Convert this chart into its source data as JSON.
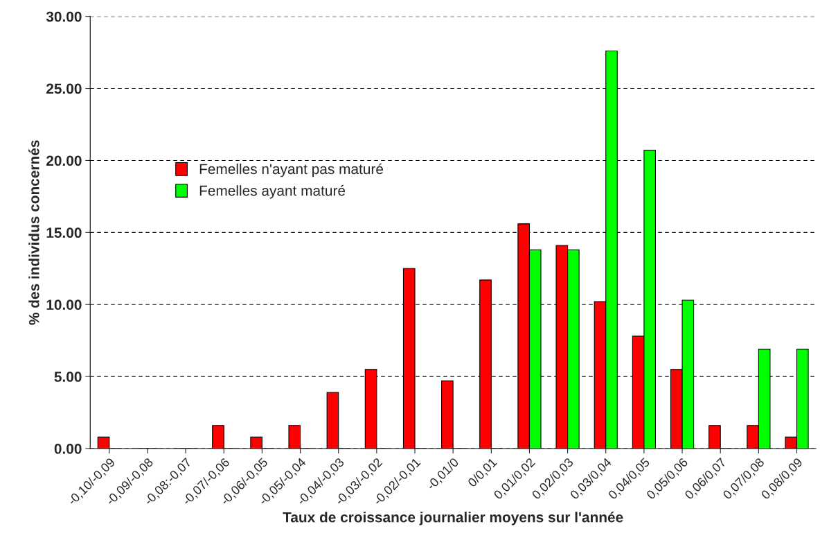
{
  "chart_data": {
    "type": "bar",
    "xlabel": "Taux de croissance journalier moyens sur l'année",
    "ylabel": "% des individus concernés",
    "categories": [
      "-0,10/-0,09",
      "-0,09/-0,08",
      "-0,08:-0,07",
      "-0,07/-0,06",
      "-0,06/-0,05",
      "-0,05/-0,04",
      "-0,04/-0,03",
      "-0,03/-0,02",
      "-0,02/-0,01",
      "-0,01/0",
      "0/0,01",
      "0,01/0,02",
      "0,02/0,03",
      "0,03/0,04",
      "0,04/0,05",
      "0,05/0,06",
      "0,06/0,07",
      "0,07/0,08",
      "0,08/0,09"
    ],
    "series": [
      {
        "name": "Femelles n'ayant pas maturé",
        "color": "#ff0000",
        "values": [
          0.8,
          0,
          0,
          1.6,
          0.8,
          1.6,
          3.9,
          5.5,
          12.5,
          4.7,
          11.7,
          15.6,
          14.1,
          10.2,
          7.8,
          5.5,
          1.6,
          1.6,
          0.8
        ]
      },
      {
        "name": "Femelles ayant maturé",
        "color": "#00ff00",
        "values": [
          0,
          0,
          0,
          0,
          0,
          0,
          0,
          0,
          0,
          0,
          0,
          13.8,
          13.8,
          27.6,
          20.7,
          10.3,
          0,
          6.9,
          6.9
        ]
      }
    ],
    "ylim": [
      0,
      30
    ],
    "yticks": [
      {
        "value": 0,
        "label": "0.00"
      },
      {
        "value": 5,
        "label": "5.00"
      },
      {
        "value": 10,
        "label": "10.00"
      },
      {
        "value": 15,
        "label": "15.00"
      },
      {
        "value": 20,
        "label": "20.00"
      },
      {
        "value": 25,
        "label": "25.00"
      },
      {
        "value": 30,
        "label": "30.00"
      }
    ],
    "grid": "y",
    "legend": "left"
  }
}
